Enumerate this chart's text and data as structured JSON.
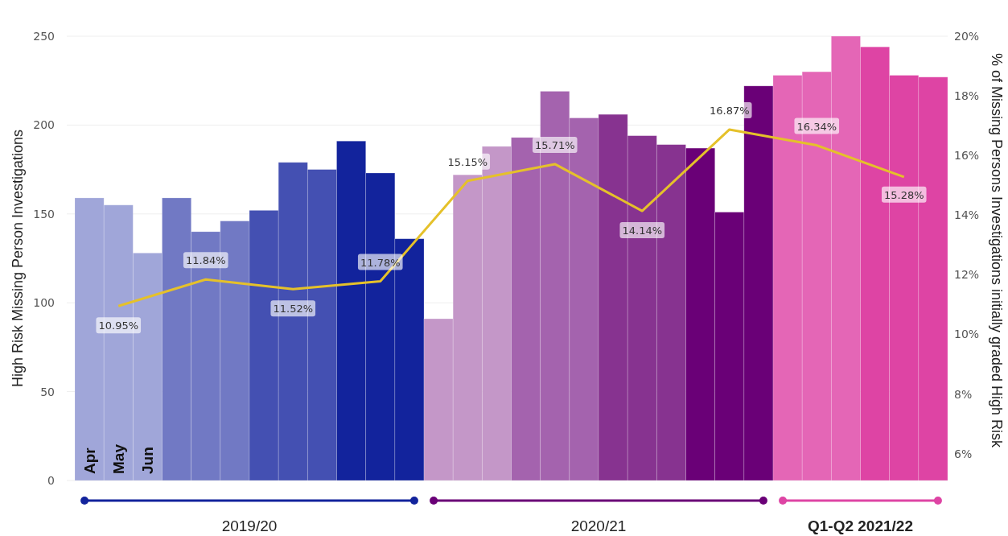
{
  "chart_data": {
    "type": "bar",
    "ylabel": "High Risk Missing Person Investigations",
    "y2label": "% of Missing Persons Investigations initially graded High Risk",
    "categories": [
      "Apr",
      "May",
      "Jun",
      null,
      null,
      null,
      null,
      null,
      null,
      null,
      null,
      null,
      null,
      null,
      null,
      null,
      null,
      null,
      null,
      null,
      null,
      null,
      null,
      null,
      null,
      null,
      null,
      null,
      null,
      null
    ],
    "series": [
      {
        "values": [
          159,
          155,
          128,
          159,
          140,
          146,
          152,
          179,
          175,
          191,
          173,
          136,
          91,
          172,
          188,
          193,
          219,
          204,
          206,
          194,
          189,
          187,
          151,
          222,
          228,
          230,
          250,
          244,
          228,
          227
        ],
        "colors": [
          "#a0a6d9",
          "#a0a6d9",
          "#a0a6d9",
          "#7179c4",
          "#7179c4",
          "#7179c4",
          "#4450b2",
          "#4450b2",
          "#4450b2",
          "#12239c",
          "#12239c",
          "#12239c",
          "#c497c8",
          "#c497c8",
          "#c497c8",
          "#a463ae",
          "#a463ae",
          "#a463ae",
          "#873390",
          "#873390",
          "#873390",
          "#6a0077",
          "#6a0077",
          "#6a0077",
          "#e466b6",
          "#e466b6",
          "#e466b6",
          "#de44a4",
          "#de44a4",
          "#de44a4"
        ]
      },
      {
        "type": "line",
        "axis": "y2",
        "color": "#e5c12a",
        "values": [
          null,
          10.95,
          null,
          null,
          11.84,
          null,
          null,
          11.52,
          null,
          null,
          11.78,
          null,
          null,
          15.15,
          null,
          null,
          15.71,
          null,
          null,
          14.14,
          null,
          null,
          16.87,
          null,
          null,
          16.34,
          null,
          null,
          15.28,
          null
        ],
        "value_labels": [
          null,
          "10.95%",
          null,
          null,
          "11.84%",
          null,
          null,
          "11.52%",
          null,
          null,
          "11.78%",
          null,
          null,
          "15.15%",
          null,
          null,
          "15.71%",
          null,
          null,
          "14.14%",
          null,
          null,
          "16.87%",
          null,
          null,
          "16.34%",
          null,
          null,
          "15.28%",
          null
        ]
      }
    ],
    "ylim": [
      0,
      250
    ],
    "yticks": [
      0,
      50,
      100,
      150,
      200,
      250
    ],
    "y2lim": [
      5.1,
      20
    ],
    "y2ticks": [
      {
        "value": 6,
        "label": "6%"
      },
      {
        "value": 8,
        "label": "8%"
      },
      {
        "value": 10,
        "label": "10%"
      },
      {
        "value": 12,
        "label": "12%"
      },
      {
        "value": 14,
        "label": "14%"
      },
      {
        "value": 16,
        "label": "16%"
      },
      {
        "value": 18,
        "label": "18%"
      },
      {
        "value": 20,
        "label": "20%"
      }
    ],
    "grid": "y",
    "annotations": [
      "2019/20",
      "2020/21",
      "Q1-Q2 2021/22"
    ]
  }
}
